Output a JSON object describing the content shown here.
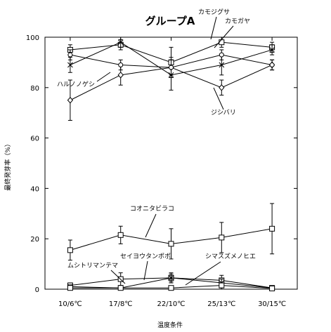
{
  "chart_data": {
    "type": "line",
    "title": "グループA",
    "xlabel": "温度条件",
    "ylabel": "最終発芽率（%）",
    "categories": [
      "10/6℃",
      "17/8℃",
      "22/10℃",
      "25/13℃",
      "30/15℃"
    ],
    "ylim": [
      0,
      100
    ],
    "yticks": [
      0,
      20,
      40,
      60,
      80,
      100
    ],
    "grid": false,
    "series": [
      {
        "name": "カモジグサ",
        "marker": "square",
        "values": [
          95,
          97,
          90,
          98,
          96
        ],
        "err": [
          2,
          2,
          6,
          2,
          2
        ]
      },
      {
        "name": "カモガヤ",
        "marker": "x",
        "values": [
          89,
          98,
          85,
          89,
          95
        ],
        "err": [
          3,
          2,
          6,
          4,
          2
        ]
      },
      {
        "name": "ハルノノゲシ",
        "marker": "diamond",
        "values": [
          75,
          85,
          88,
          80,
          89
        ],
        "err": [
          8,
          4,
          4,
          3,
          2
        ]
      },
      {
        "name": "ジシバリ",
        "marker": "circle",
        "values": [
          93,
          89,
          88,
          93,
          89
        ],
        "err": [
          2,
          2,
          3,
          2,
          2
        ]
      },
      {
        "name": "コオニタビラコ",
        "marker": "square",
        "values": [
          15.5,
          21.5,
          18,
          20.5,
          24
        ],
        "err": [
          4,
          3.5,
          6,
          6,
          10
        ]
      },
      {
        "name": "セイヨウタンポポ",
        "marker": "square",
        "values": [
          1.5,
          4,
          4.5,
          3.5,
          0.5
        ],
        "err": [
          1,
          2.5,
          2,
          2,
          0.5
        ]
      },
      {
        "name": "ムシトリマンテマ",
        "marker": "x",
        "values": [
          1,
          0.5,
          4.5,
          2.5,
          0.5
        ],
        "err": [
          0.7,
          0.7,
          1.5,
          1.5,
          0.5
        ]
      },
      {
        "name": "シマスズメノヒエ",
        "marker": "square",
        "values": [
          0.5,
          0.5,
          0.5,
          1.5,
          0.3
        ],
        "err": [
          0.5,
          0.5,
          0.5,
          1,
          0.3
        ]
      }
    ],
    "annotations": [
      "カモジグサ",
      "カモガヤ",
      "ハルノノゲシ",
      "ジシバリ",
      "コオニタビラコ",
      "セイヨウタンポポ",
      "ムシトリマンテマ",
      "シマスズメノヒエ"
    ]
  }
}
